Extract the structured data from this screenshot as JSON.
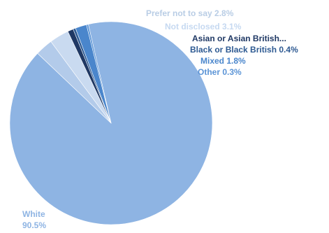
{
  "chart_data": {
    "type": "pie",
    "start_angle_deg": -13,
    "direction": "clockwise",
    "slices": [
      {
        "label": "White",
        "value": 90.5,
        "display": "90.5%",
        "color": "#8eb4e3",
        "label_color": "#8eb4e3"
      },
      {
        "label": "Prefer not to say",
        "value": 2.8,
        "display": "2.8%",
        "color": "#b3cbea",
        "label_color": "#b9cde5"
      },
      {
        "label": "Not disclosed",
        "value": 3.1,
        "display": "3.1%",
        "color": "#c9daf0",
        "label_color": "#c6d9f1"
      },
      {
        "label": "Asian or Asian British...",
        "value": 0.9,
        "display": "",
        "color": "#1f3864",
        "label_color": "#1f3864"
      },
      {
        "label": "Black or Black British",
        "value": 0.4,
        "display": "0.4%",
        "color": "#2e5a92",
        "label_color": "#2e5a92"
      },
      {
        "label": "Mixed",
        "value": 1.8,
        "display": "1.8%",
        "color": "#4a86cc",
        "label_color": "#4a86cc"
      },
      {
        "label": "Other",
        "value": 0.3,
        "display": "0.3%",
        "color": "#5b94d6",
        "label_color": "#5b94d6"
      }
    ]
  }
}
